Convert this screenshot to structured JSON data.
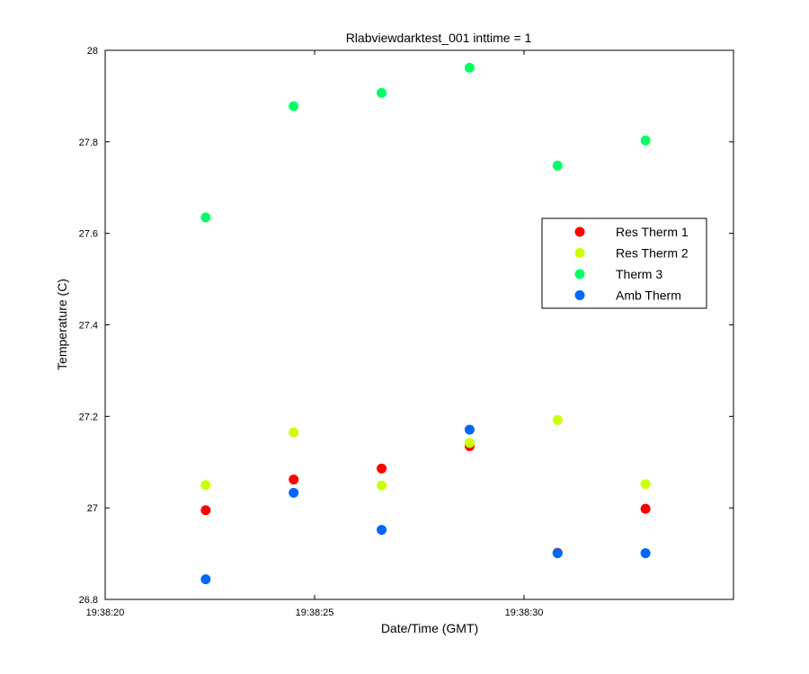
{
  "chart_data": {
    "type": "scatter",
    "title": "Rlabviewdarktest_001 inttime = 1",
    "xlabel": "Date/Time (GMT)",
    "ylabel": "Temperature (C)",
    "xlim": [
      "19:38:20",
      "19:38:35"
    ],
    "ylim": [
      26.8,
      28.0
    ],
    "x_ticks": [
      "19:38:20",
      "19:38:25",
      "19:38:30"
    ],
    "y_ticks": [
      "26.8",
      "27",
      "27.2",
      "27.4",
      "27.6",
      "27.8",
      "28"
    ],
    "grid": false,
    "legend_position": "upper-right",
    "x": [
      "19:38:22.4",
      "19:38:24.5",
      "19:38:26.6",
      "19:38:28.7",
      "19:38:30.8",
      "19:38:32.9"
    ],
    "series": [
      {
        "name": "Res Therm 1",
        "color": "#ff0000",
        "values": [
          26.995,
          27.062,
          27.086,
          27.135,
          26.902,
          26.998
        ]
      },
      {
        "name": "Res Therm 2",
        "color": "#ccff00",
        "values": [
          27.05,
          27.165,
          27.049,
          27.142,
          27.192,
          27.052
        ]
      },
      {
        "name": "Therm 3",
        "color": "#00ff66",
        "values": [
          27.635,
          27.878,
          27.907,
          27.962,
          27.748,
          27.803
        ]
      },
      {
        "name": "Amb Therm",
        "color": "#0066ff",
        "values": [
          26.844,
          27.033,
          26.952,
          27.171,
          26.901,
          26.901
        ]
      }
    ]
  }
}
